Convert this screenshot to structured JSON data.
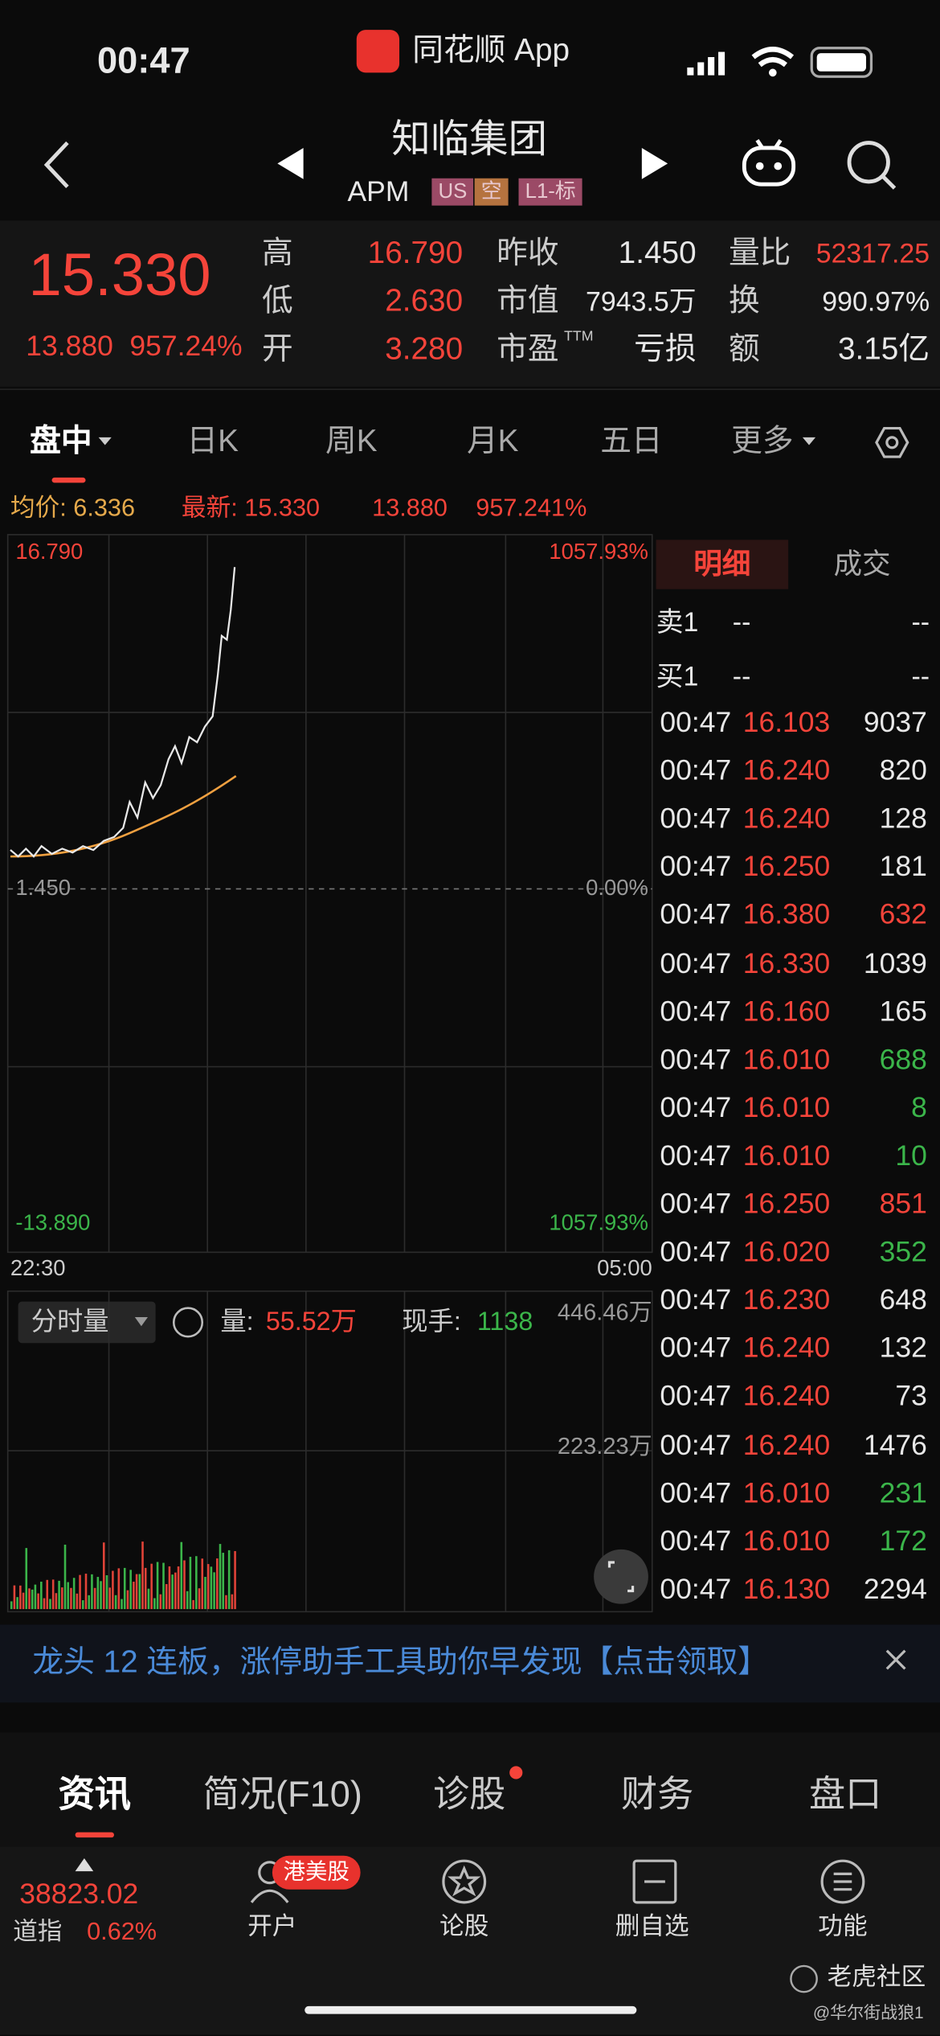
{
  "status_bar": {
    "time": "00:47",
    "app": "同花顺 App"
  },
  "header": {
    "name": "知临集团",
    "code": "APM",
    "tags": [
      "US",
      "空",
      "L1-标"
    ]
  },
  "quote": {
    "price": "15.330",
    "change": "13.880",
    "change_pct": "957.24%",
    "stats": [
      {
        "label": "高",
        "value": "16.790",
        "color": "#f5443a"
      },
      {
        "label": "昨收",
        "value": "1.450",
        "color": "#e8e8e8"
      },
      {
        "label": "量比",
        "value": "52317.25",
        "color": "#f5443a"
      },
      {
        "label": "低",
        "value": "2.630",
        "color": "#f5443a"
      },
      {
        "label": "市值",
        "value": "7943.5万",
        "color": "#e8e8e8"
      },
      {
        "label": "换",
        "value": "990.97%",
        "color": "#e8e8e8"
      },
      {
        "label": "开",
        "value": "3.280",
        "color": "#f5443a"
      },
      {
        "label": "市盈",
        "label_sup": "TTM",
        "value": "亏损",
        "color": "#e8e8e8"
      },
      {
        "label": "额",
        "value": "3.15亿",
        "color": "#e8e8e8"
      }
    ]
  },
  "period_tabs": [
    "盘中",
    "日K",
    "周K",
    "月K",
    "五日",
    "更多"
  ],
  "chart_info": {
    "avg": "均价: 6.336",
    "latest": "最新: 15.330",
    "change": "13.880",
    "change_pct": "957.241%"
  },
  "price_chart": {
    "top_price": "16.790",
    "top_pct": "1057.93%",
    "mid_price": "1.450",
    "mid_pct": "0.00%",
    "bottom_price": "-13.890",
    "bottom_pct": "1057.93%",
    "time_start": "22:30",
    "time_end": "05:00"
  },
  "volume_chart": {
    "selector": "分时量",
    "volume_label": "量:",
    "volume": "55.52万",
    "hand_label": "现手:",
    "hand": "1138",
    "top": "446.46万",
    "mid": "223.23万"
  },
  "trade_panel": {
    "tabs": [
      "明细",
      "成交"
    ],
    "sell1": [
      "卖1",
      "--",
      "--"
    ],
    "buy1": [
      "买1",
      "--",
      "--"
    ],
    "rows": [
      {
        "time": "00:47",
        "price": "16.103",
        "price_color": "#f5443a",
        "volume": "9037",
        "volume_color": "#e8e8e8"
      },
      {
        "time": "00:47",
        "price": "16.240",
        "price_color": "#f5443a",
        "volume": "820",
        "volume_color": "#e8e8e8"
      },
      {
        "time": "00:47",
        "price": "16.240",
        "price_color": "#f5443a",
        "volume": "128",
        "volume_color": "#e8e8e8"
      },
      {
        "time": "00:47",
        "price": "16.250",
        "price_color": "#f5443a",
        "volume": "181",
        "volume_color": "#e8e8e8"
      },
      {
        "time": "00:47",
        "price": "16.380",
        "price_color": "#f5443a",
        "volume": "632",
        "volume_color": "#f5443a"
      },
      {
        "time": "00:47",
        "price": "16.330",
        "price_color": "#f5443a",
        "volume": "1039",
        "volume_color": "#e8e8e8"
      },
      {
        "time": "00:47",
        "price": "16.160",
        "price_color": "#f5443a",
        "volume": "165",
        "volume_color": "#e8e8e8"
      },
      {
        "time": "00:47",
        "price": "16.010",
        "price_color": "#f5443a",
        "volume": "688",
        "volume_color": "#3bb54a"
      },
      {
        "time": "00:47",
        "price": "16.010",
        "price_color": "#f5443a",
        "volume": "8",
        "volume_color": "#3bb54a"
      },
      {
        "time": "00:47",
        "price": "16.010",
        "price_color": "#f5443a",
        "volume": "10",
        "volume_color": "#3bb54a"
      },
      {
        "time": "00:47",
        "price": "16.250",
        "price_color": "#f5443a",
        "volume": "851",
        "volume_color": "#f5443a"
      },
      {
        "time": "00:47",
        "price": "16.020",
        "price_color": "#f5443a",
        "volume": "352",
        "volume_color": "#3bb54a"
      },
      {
        "time": "00:47",
        "price": "16.230",
        "price_color": "#f5443a",
        "volume": "648",
        "volume_color": "#e8e8e8"
      },
      {
        "time": "00:47",
        "price": "16.240",
        "price_color": "#f5443a",
        "volume": "132",
        "volume_color": "#e8e8e8"
      },
      {
        "time": "00:47",
        "price": "16.240",
        "price_color": "#f5443a",
        "volume": "73",
        "volume_color": "#e8e8e8"
      },
      {
        "time": "00:47",
        "price": "16.240",
        "price_color": "#f5443a",
        "volume": "1476",
        "volume_color": "#e8e8e8"
      },
      {
        "time": "00:47",
        "price": "16.010",
        "price_color": "#f5443a",
        "volume": "231",
        "volume_color": "#3bb54a"
      },
      {
        "time": "00:47",
        "price": "16.010",
        "price_color": "#f5443a",
        "volume": "172",
        "volume_color": "#3bb54a"
      },
      {
        "time": "00:47",
        "price": "16.130",
        "price_color": "#f5443a",
        "volume": "2294",
        "volume_color": "#e8e8e8"
      }
    ]
  },
  "banner": {
    "text": "龙头 12 连板，涨停助手工具助你早发现【点击领取】"
  },
  "bottom_tabs": [
    "资讯",
    "简况(F10)",
    "诊股",
    "财务",
    "盘口"
  ],
  "footer": {
    "index_value": "38823.02",
    "index_name": "道指",
    "index_change": "0.62%",
    "badge": "港美股",
    "actions": [
      "开户",
      "论股",
      "删自选",
      "功能"
    ]
  },
  "watermark": {
    "brand": "老虎社区",
    "user": "@华尔街战狼1"
  }
}
